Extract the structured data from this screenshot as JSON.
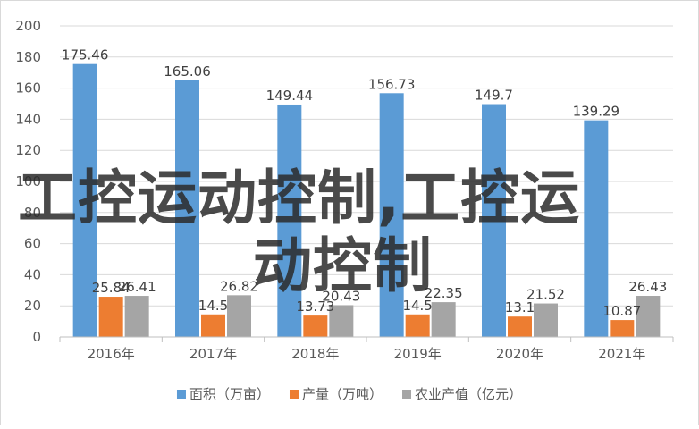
{
  "chart_data": {
    "type": "bar",
    "categories": [
      "2016年",
      "2017年",
      "2018年",
      "2019年",
      "2020年",
      "2021年"
    ],
    "series": [
      {
        "name": "面积（万亩）",
        "values": [
          175.46,
          165.06,
          149.44,
          156.73,
          149.7,
          139.29
        ],
        "color": "#5b9bd5"
      },
      {
        "name": "产量（万吨）",
        "values": [
          25.84,
          14.5,
          13.73,
          14.5,
          13.1,
          10.87
        ],
        "color": "#ed7d31"
      },
      {
        "name": "农业产值（亿元）",
        "values": [
          26.41,
          26.82,
          20.43,
          22.35,
          21.52,
          26.43
        ],
        "color": "#a5a5a5"
      }
    ],
    "data_labels": [
      [
        "175.46",
        "165.06",
        "149.44",
        "156.73",
        "149.7",
        "139.29"
      ],
      [
        "25.84",
        "14.5",
        "13.73",
        "14.5",
        "13.1",
        "10.87"
      ],
      [
        "26.41",
        "26.82",
        "20.43",
        "22.35",
        "21.52",
        "26.43"
      ]
    ],
    "ylim": [
      0,
      200
    ],
    "yticks": [
      0,
      20,
      40,
      60,
      80,
      100,
      120,
      140,
      160,
      180,
      200
    ],
    "grid": true,
    "legend_position": "bottom",
    "title": "",
    "xlabel": "",
    "ylabel": ""
  },
  "watermark": {
    "line1": "工控运动控制,工控运",
    "line2": "动控制"
  },
  "colors": {
    "gridline": "#d9d9d9",
    "axis": "#bfbfbf"
  }
}
